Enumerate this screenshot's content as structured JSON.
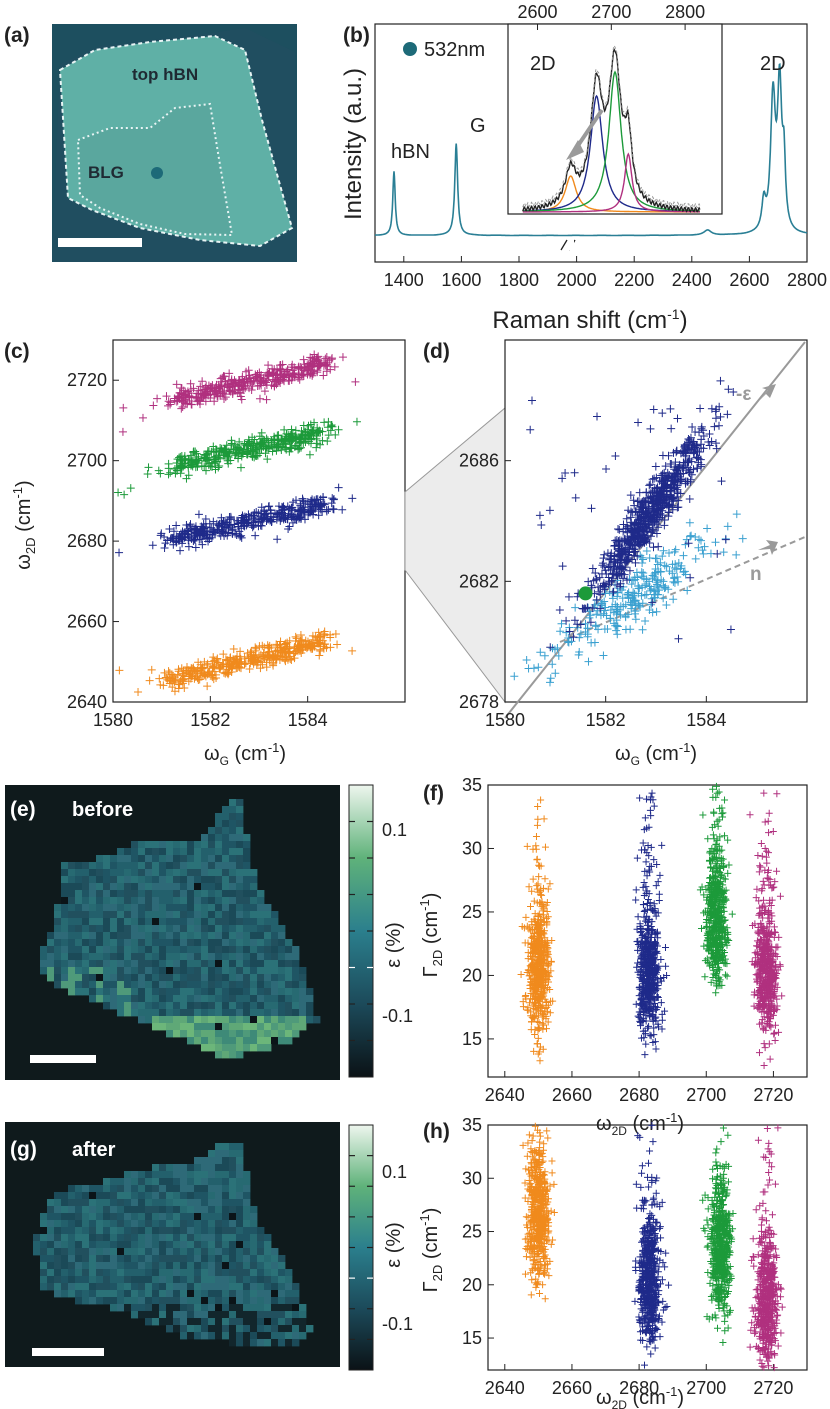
{
  "figure": {
    "colors": {
      "orange": "#f08a1d",
      "blue": "#1f2a8a",
      "green": "#1c9a3a",
      "magenta": "#b0307f",
      "lightblue": "#3aa0d0",
      "spectrum": "#2a7f95",
      "grey": "#9a9a9a",
      "hbn_bg": "#1d4f5f",
      "flake": "#5fb0a6"
    },
    "panel_a": {
      "tag": "(a)",
      "label_top": "top hBN",
      "label_blg": "BLG",
      "marker_icon": "dot-icon"
    },
    "panel_b": {
      "tag": "(b)",
      "legend": "532nm",
      "ylabel": "Intensity (a.u.)",
      "xlabel": "Raman shift (cm",
      "xlabel_sup": "-1",
      "xlabel_end": ")",
      "peak_hbn": "hBN",
      "peak_g": "G",
      "peak_2d": "2D",
      "inset_label": "2D",
      "xticks": [
        "1400",
        "1600",
        "1800",
        "2000",
        "2200",
        "2400",
        "2600",
        "2800"
      ],
      "inset_xticks": [
        "2600",
        "2700",
        "2800"
      ]
    },
    "panel_c": {
      "tag": "(c)",
      "ylabel_main": "ω",
      "ylabel_sub": "2D",
      "ylabel_end": " (cm",
      "ylabel_sup": "-1",
      "ylabel_close": ")",
      "xlabel_main": "ω",
      "xlabel_sub": "G",
      "xlabel_end": " (cm",
      "xlabel_sup": "-1",
      "xlabel_close": ")",
      "yticks": [
        "2640",
        "2660",
        "2680",
        "2700",
        "2720"
      ],
      "xticks": [
        "1580",
        "1582",
        "1584"
      ]
    },
    "panel_d": {
      "tag": "(d)",
      "strain_label": "-ε",
      "doping_label": "n",
      "yticks": [
        "2678",
        "2682",
        "2686"
      ],
      "xticks": [
        "1580",
        "1582",
        "1584"
      ],
      "xlabel_main": "ω",
      "xlabel_sub": "G",
      "xlabel_end": " (cm",
      "xlabel_sup": "-1",
      "xlabel_close": ")"
    },
    "panel_e": {
      "tag": "(e)",
      "label": "before",
      "cbar_label": "ε (%)",
      "cbar_ticks": [
        "0.1",
        "-0.1"
      ]
    },
    "panel_f": {
      "tag": "(f)",
      "ylabel_main": "Γ",
      "ylabel_sub": "2D",
      "ylabel_end": " (cm",
      "ylabel_sup": "-1",
      "ylabel_close": ")",
      "yticks": [
        "15",
        "20",
        "25",
        "30",
        "35"
      ],
      "xticks": [
        "2640",
        "2660",
        "2680",
        "2700",
        "2720"
      ],
      "xlabel_main": "ω",
      "xlabel_sub": "2D",
      "xlabel_end": " (cm",
      "xlabel_sup": "-1",
      "xlabel_close": ")"
    },
    "panel_g": {
      "tag": "(g)",
      "label": "after",
      "cbar_label": "ε (%)",
      "cbar_ticks": [
        "0.1",
        "-0.1"
      ]
    },
    "panel_h": {
      "tag": "(h)",
      "ylabel_main": "Γ",
      "ylabel_sub": "2D",
      "ylabel_end": " (cm",
      "ylabel_sup": "-1",
      "ylabel_close": ")",
      "yticks": [
        "15",
        "20",
        "25",
        "30",
        "35"
      ],
      "xticks": [
        "2640",
        "2660",
        "2680",
        "2700",
        "2720"
      ],
      "xlabel_main": "ω",
      "xlabel_sub": "2D",
      "xlabel_end": " (cm",
      "xlabel_sup": "-1",
      "xlabel_close": ")"
    }
  },
  "chart_data": [
    {
      "panel": "b",
      "type": "line",
      "xlim": [
        1300,
        2800
      ],
      "peaks": [
        {
          "label": "hBN",
          "x": 1366
        },
        {
          "label": "G",
          "x": 1582
        },
        {
          "label": "2D",
          "x": 2690
        }
      ]
    },
    {
      "panel": "c",
      "type": "scatter",
      "xlim": [
        1580,
        1586
      ],
      "ylim": [
        2640,
        2730
      ],
      "series": [
        {
          "color": "#b0307f",
          "y_at_1581": 2714,
          "y_at_1584": 2723
        },
        {
          "color": "#1c9a3a",
          "y_at_1581": 2698,
          "y_at_1584": 2706
        },
        {
          "color": "#1f2a8a",
          "y_at_1581": 2680,
          "y_at_1584": 2688
        },
        {
          "color": "#f08a1d",
          "y_at_1581": 2645,
          "y_at_1584": 2654
        }
      ]
    },
    {
      "panel": "d",
      "type": "scatter",
      "xlim": [
        1580,
        1586
      ],
      "ylim": [
        2678,
        2690
      ],
      "series": [
        {
          "color": "#1f2a8a",
          "center": [
            1582.9,
            2684.3
          ]
        },
        {
          "color": "#3aa0d0",
          "center": [
            1582.6,
            2681.6
          ]
        }
      ],
      "marker": {
        "x": 1581.6,
        "y": 2681.6
      }
    },
    {
      "panel": "f",
      "type": "scatter",
      "xlim": [
        2635,
        2730
      ],
      "ylim": [
        12,
        35
      ],
      "series": [
        {
          "color": "#f08a1d",
          "x_center": 2650,
          "y_center": 20
        },
        {
          "color": "#1f2a8a",
          "x_center": 2683,
          "y_center": 20
        },
        {
          "color": "#1c9a3a",
          "x_center": 2703,
          "y_center": 24
        },
        {
          "color": "#b0307f",
          "x_center": 2718,
          "y_center": 20
        }
      ]
    },
    {
      "panel": "h",
      "type": "scatter",
      "xlim": [
        2635,
        2730
      ],
      "ylim": [
        12,
        35
      ],
      "series": [
        {
          "color": "#f08a1d",
          "x_center": 2650,
          "y_center": 26
        },
        {
          "color": "#1f2a8a",
          "x_center": 2683,
          "y_center": 20
        },
        {
          "color": "#1c9a3a",
          "x_center": 2704,
          "y_center": 23
        },
        {
          "color": "#b0307f",
          "x_center": 2718,
          "y_center": 18
        }
      ]
    }
  ]
}
